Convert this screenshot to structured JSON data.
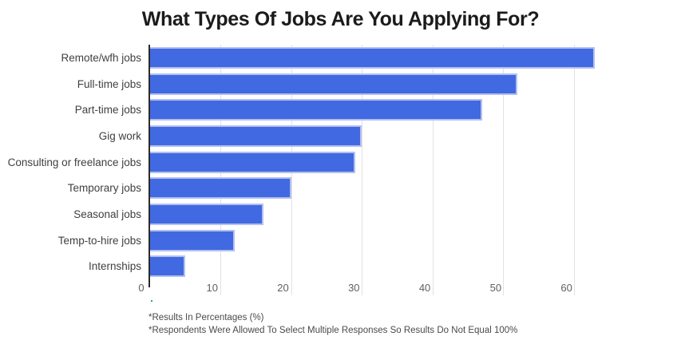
{
  "chart_data": {
    "type": "bar",
    "orientation": "horizontal",
    "title": "What Types Of Jobs Are You Applying For?",
    "categories": [
      "Remote/wfh jobs",
      "Full-time jobs",
      "Part-time jobs",
      "Gig work",
      "Consulting or freelance jobs",
      "Temporary jobs",
      "Seasonal jobs",
      "Temp-to-hire jobs",
      "Internships"
    ],
    "values": [
      63,
      52,
      47,
      30,
      29,
      20,
      16,
      12,
      5
    ],
    "unit": "%",
    "xlabel": "",
    "ylabel": "",
    "xlim": [
      0,
      65
    ],
    "xticks": [
      0,
      10,
      20,
      30,
      40,
      50,
      60
    ],
    "grid": true,
    "legend": false,
    "colors": {
      "bar": "#4169e1",
      "bar_border": "#b3c0ee",
      "axis": "#2b2b2b",
      "gridline": "#e2e2e2",
      "title_text": "#1b1b1b",
      "label_text": "#404040",
      "tick_text": "#5f5f5f",
      "footnote_text": "#4a4a4a"
    }
  },
  "footnotes": [
    "*Results In Percentages (%)",
    "*Respondents Were Allowed To Select Multiple Responses So Results Do Not Equal 100%"
  ]
}
